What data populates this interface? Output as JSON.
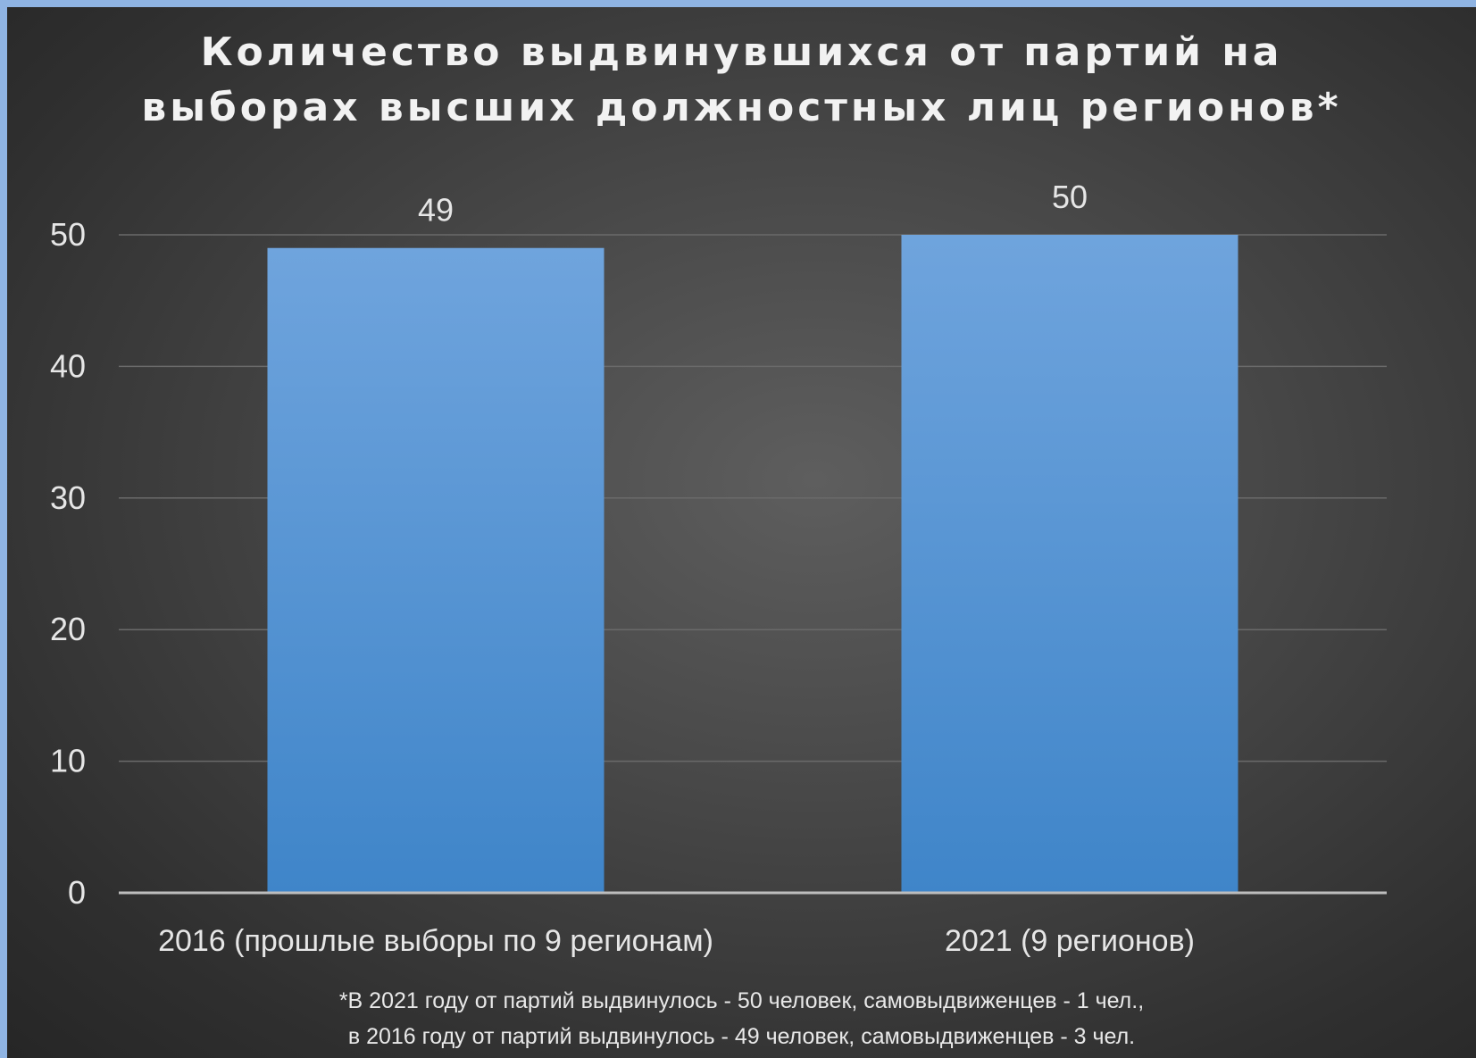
{
  "chart_data": {
    "type": "bar",
    "title_lines": [
      "Количество выдвинувшихся от партий на",
      "выборах высших должностных лиц регионов*"
    ],
    "categories": [
      "2016 (прошлые выборы по 9 регионам)",
      "2021 (9 регионов)"
    ],
    "values": [
      49,
      50
    ],
    "data_labels": [
      "49",
      "50"
    ],
    "ylim": [
      0,
      50
    ],
    "yticks": [
      0,
      10,
      20,
      30,
      40,
      50
    ],
    "grid": true,
    "legend": "none",
    "colors": {
      "bar_top": "#6fa4dd",
      "bar_bottom": "#3f85c9",
      "gridline": "#6a6a6a",
      "axis": "#bdbdbd",
      "text": "#e6e6e6"
    }
  },
  "footnote_lines": [
    "*В 2021  году от партий  выдвинулось - 50 человек, самовыдвиженцев - 1 чел.,",
    "в 2016 году от партий выдвинулось - 49 человек, самовыдвиженцев - 3 чел."
  ]
}
